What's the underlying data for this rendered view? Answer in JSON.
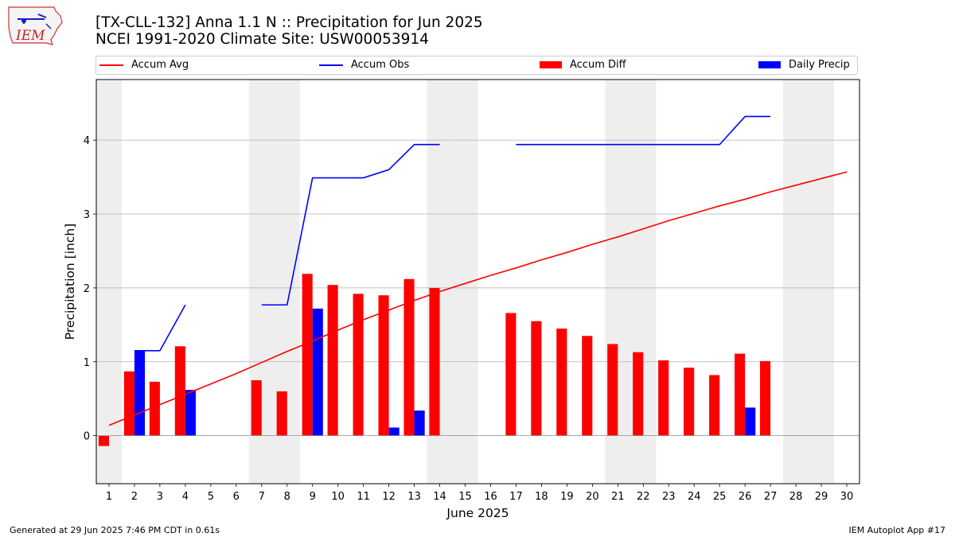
{
  "header": {
    "title_line1": "[TX-CLL-132] Anna 1.1 N :: Precipitation for Jun 2025",
    "title_line2": "NCEI 1991-2020 Climate Site: USW00053914"
  },
  "logo": {
    "text": "IEM"
  },
  "legend": {
    "items": [
      {
        "label": "Accum Avg",
        "kind": "line",
        "color": "#ff0000"
      },
      {
        "label": "Accum Obs",
        "kind": "line",
        "color": "#0000ff"
      },
      {
        "label": "Accum Diff",
        "kind": "box",
        "color": "#ff0000"
      },
      {
        "label": "Daily Precip",
        "kind": "box",
        "color": "#0000ff"
      }
    ]
  },
  "footer": {
    "generated": "Generated at 29 Jun 2025 7:46 PM CDT in 0.61s",
    "app": "IEM Autoplot App #17"
  },
  "chart_data": {
    "type": "bar",
    "xlabel": "June 2025",
    "ylabel": "Precipitation [inch]",
    "ylim": [
      -0.65,
      4.82
    ],
    "yticks": [
      0,
      1,
      2,
      3,
      4
    ],
    "days": [
      1,
      2,
      3,
      4,
      5,
      6,
      7,
      8,
      9,
      10,
      11,
      12,
      13,
      14,
      15,
      16,
      17,
      18,
      19,
      20,
      21,
      22,
      23,
      24,
      25,
      26,
      27,
      28,
      29,
      30
    ],
    "weekend_shaded_days": [
      1,
      7,
      8,
      14,
      15,
      21,
      22,
      28,
      29
    ],
    "grid": "horizontal",
    "series": [
      {
        "name": "Accum Avg",
        "kind": "line",
        "color": "#ff0000",
        "values": [
          0.14,
          0.28,
          0.42,
          0.56,
          0.7,
          0.84,
          0.99,
          1.14,
          1.28,
          1.43,
          1.57,
          1.7,
          1.83,
          1.95,
          2.06,
          2.17,
          2.27,
          2.38,
          2.48,
          2.59,
          2.69,
          2.8,
          2.91,
          3.01,
          3.11,
          3.2,
          3.3,
          3.39,
          3.48,
          3.57
        ]
      },
      {
        "name": "Accum Obs",
        "kind": "line",
        "color": "#0000ff",
        "values": [
          null,
          1.15,
          1.15,
          1.77,
          null,
          null,
          1.77,
          1.77,
          3.49,
          3.49,
          3.49,
          3.6,
          3.94,
          3.94,
          null,
          null,
          3.94,
          3.94,
          3.94,
          3.94,
          3.94,
          3.94,
          3.94,
          3.94,
          3.94,
          4.32,
          4.32,
          null,
          null,
          null
        ]
      },
      {
        "name": "Accum Diff",
        "kind": "bar",
        "color": "#ff0000",
        "values": [
          -0.14,
          0.87,
          0.73,
          1.21,
          null,
          null,
          0.75,
          0.6,
          2.19,
          2.04,
          1.92,
          1.9,
          2.12,
          2.0,
          null,
          null,
          1.66,
          1.55,
          1.45,
          1.35,
          1.24,
          1.13,
          1.02,
          0.92,
          0.82,
          1.11,
          1.01,
          null,
          null,
          null
        ]
      },
      {
        "name": "Daily Precip",
        "kind": "bar",
        "color": "#0000ff",
        "values": [
          0,
          1.15,
          0,
          0.62,
          null,
          null,
          0,
          0,
          1.72,
          0,
          0,
          0.11,
          0.34,
          0,
          null,
          null,
          0,
          0,
          0,
          0,
          0,
          0,
          0,
          0,
          0,
          0.38,
          0,
          null,
          null,
          null
        ]
      }
    ]
  }
}
